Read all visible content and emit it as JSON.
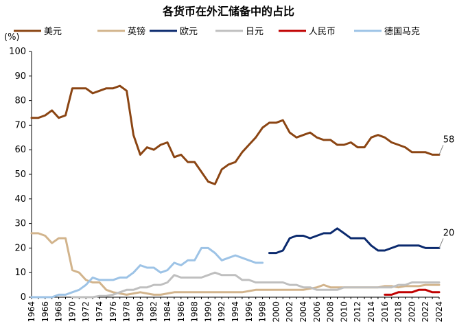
{
  "chart_data": {
    "type": "line",
    "title": "各货币在外汇储备中的占比",
    "ylabel": "(%)",
    "xlabel": "",
    "ylim": [
      0,
      100
    ],
    "yticks": [
      "0",
      "10",
      "20",
      "30",
      "40",
      "50",
      "60",
      "70",
      "80",
      "90",
      "100"
    ],
    "xticks": [
      "1964",
      "1966",
      "1968",
      "1970",
      "1972",
      "1974",
      "1976",
      "1978",
      "1980",
      "1982",
      "1984",
      "1986",
      "1988",
      "1990",
      "1992",
      "1994",
      "1996",
      "1998",
      "2000",
      "2002",
      "2004",
      "2006",
      "2008",
      "2010",
      "2012",
      "2014",
      "2016",
      "2018",
      "2020",
      "2022",
      "2024"
    ],
    "legend_position": "top",
    "end_labels": [
      {
        "series": "美元",
        "text": "58",
        "x": 2024,
        "y": 58
      },
      {
        "series": "欧元",
        "text": "20",
        "x": 2024,
        "y": 20
      }
    ],
    "series": [
      {
        "name": "美元",
        "color": "#8B4513",
        "x": [
          1964,
          1965,
          1966,
          1967,
          1968,
          1969,
          1970,
          1971,
          1972,
          1973,
          1974,
          1975,
          1976,
          1977,
          1978,
          1979,
          1980,
          1981,
          1982,
          1983,
          1984,
          1985,
          1986,
          1987,
          1988,
          1989,
          1990,
          1991,
          1992,
          1993,
          1994,
          1995,
          1996,
          1997,
          1998,
          1999,
          2000,
          2001,
          2002,
          2003,
          2004,
          2005,
          2006,
          2007,
          2008,
          2009,
          2010,
          2011,
          2012,
          2013,
          2014,
          2015,
          2016,
          2017,
          2018,
          2019,
          2020,
          2021,
          2022,
          2023,
          2024
        ],
        "y": [
          73,
          73,
          74,
          76,
          73,
          74,
          85,
          85,
          85,
          83,
          84,
          85,
          85,
          86,
          84,
          66,
          58,
          61,
          60,
          62,
          63,
          57,
          58,
          55,
          55,
          51,
          47,
          46,
          52,
          54,
          55,
          59,
          62,
          65,
          69,
          71,
          71,
          72,
          67,
          65,
          66,
          67,
          65,
          64,
          64,
          62,
          62,
          63,
          61,
          61,
          65,
          66,
          65,
          63,
          62,
          61,
          59,
          59,
          59,
          58,
          58
        ]
      },
      {
        "name": "英镑",
        "color": "#D2B48C",
        "x": [
          1964,
          1965,
          1966,
          1967,
          1968,
          1969,
          1970,
          1971,
          1972,
          1973,
          1974,
          1975,
          1976,
          1977,
          1978,
          1979,
          1980,
          1981,
          1982,
          1983,
          1984,
          1985,
          1986,
          1987,
          1988,
          1989,
          1990,
          1991,
          1992,
          1993,
          1994,
          1995,
          1996,
          1997,
          1998,
          1999,
          2000,
          2001,
          2002,
          2003,
          2004,
          2005,
          2006,
          2007,
          2008,
          2009,
          2010,
          2011,
          2012,
          2013,
          2014,
          2015,
          2016,
          2017,
          2018,
          2019,
          2020,
          2021,
          2022,
          2023,
          2024
        ],
        "y": [
          26,
          26,
          25,
          22,
          24,
          24,
          11,
          10,
          7,
          6,
          6,
          3,
          2,
          1.5,
          1,
          1.5,
          2,
          1.5,
          1,
          1,
          1.5,
          2,
          2,
          2,
          2,
          2,
          2,
          2,
          2,
          2,
          2,
          2,
          2.5,
          3,
          3,
          3,
          3,
          3,
          3,
          3,
          3,
          3.5,
          4,
          5,
          4,
          4,
          4,
          4,
          4,
          4,
          4,
          4,
          4.5,
          4.5,
          4,
          4.5,
          4.5,
          4.5,
          5,
          5,
          5
        ]
      },
      {
        "name": "欧元",
        "color": "#0B2A6E",
        "x": [
          1999,
          2000,
          2001,
          2002,
          2003,
          2004,
          2005,
          2006,
          2007,
          2008,
          2009,
          2010,
          2011,
          2012,
          2013,
          2014,
          2015,
          2016,
          2017,
          2018,
          2019,
          2020,
          2021,
          2022,
          2023,
          2024
        ],
        "y": [
          18,
          18,
          19,
          24,
          25,
          25,
          24,
          25,
          26,
          26,
          28,
          26,
          24,
          24,
          24,
          21,
          19,
          19,
          20,
          21,
          21,
          21,
          21,
          20,
          20,
          20
        ]
      },
      {
        "name": "日元",
        "color": "#BFBFBF",
        "x": [
          1970,
          1971,
          1972,
          1973,
          1974,
          1975,
          1976,
          1977,
          1978,
          1979,
          1980,
          1981,
          1982,
          1983,
          1984,
          1985,
          1986,
          1987,
          1988,
          1989,
          1990,
          1991,
          1992,
          1993,
          1994,
          1995,
          1996,
          1997,
          1998,
          1999,
          2000,
          2001,
          2002,
          2003,
          2004,
          2005,
          2006,
          2007,
          2008,
          2009,
          2010,
          2011,
          2012,
          2013,
          2014,
          2015,
          2016,
          2017,
          2018,
          2019,
          2020,
          2021,
          2022,
          2023,
          2024
        ],
        "y": [
          0,
          0,
          0,
          0,
          0.5,
          0.5,
          1,
          2,
          3,
          3,
          4,
          4,
          5,
          5,
          6,
          9,
          8,
          8,
          8,
          8,
          9,
          10,
          9,
          9,
          9,
          7,
          7,
          6,
          6,
          6,
          6,
          6,
          5,
          5,
          4,
          4,
          3,
          3,
          3,
          3,
          4,
          4,
          4,
          4,
          4,
          4,
          4,
          4,
          5,
          5,
          6,
          6,
          6,
          6,
          6
        ]
      },
      {
        "name": "人民币",
        "color": "#C00000",
        "x": [
          2016,
          2017,
          2018,
          2019,
          2020,
          2021,
          2022,
          2023,
          2024
        ],
        "y": [
          1,
          1,
          2,
          2,
          2,
          3,
          3,
          2,
          2
        ]
      },
      {
        "name": "德国马克",
        "color": "#9DC3E6",
        "x": [
          1964,
          1965,
          1966,
          1967,
          1968,
          1969,
          1970,
          1971,
          1972,
          1973,
          1974,
          1975,
          1976,
          1977,
          1978,
          1979,
          1980,
          1981,
          1982,
          1983,
          1984,
          1985,
          1986,
          1987,
          1988,
          1989,
          1990,
          1991,
          1992,
          1993,
          1994,
          1995,
          1996,
          1997,
          1998
        ],
        "y": [
          0,
          0,
          0,
          0,
          1,
          1,
          2,
          3,
          5,
          8,
          7,
          7,
          7,
          8,
          8,
          10,
          13,
          12,
          12,
          10,
          11,
          14,
          13,
          15,
          15,
          20,
          20,
          18,
          15,
          16,
          17,
          16,
          15,
          14,
          14
        ]
      }
    ]
  }
}
